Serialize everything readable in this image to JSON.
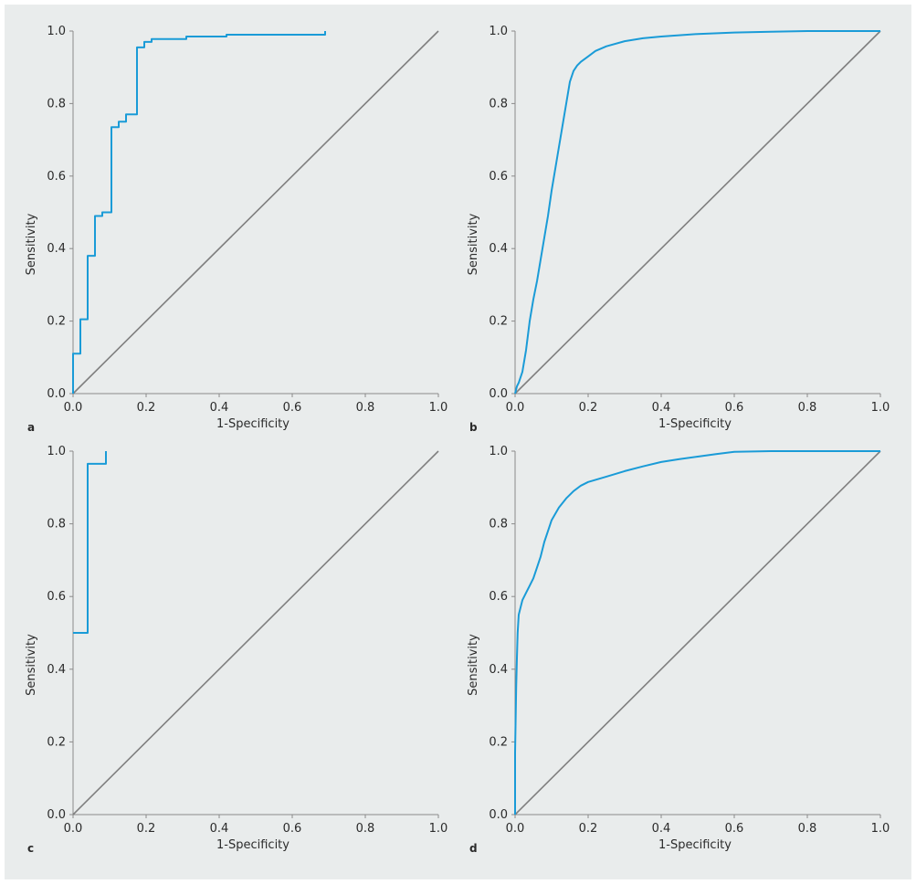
{
  "colors": {
    "roc_line": "#1a9bd7",
    "reference_line": "#7f7f7f",
    "panel_background": "#e9ecec"
  },
  "chart_data": [
    {
      "type": "line",
      "panel": "a",
      "xlabel": "1-Specificity",
      "ylabel": "Sensitivity",
      "xlim": [
        0,
        1
      ],
      "ylim": [
        0,
        1
      ],
      "xticks": [
        "0.0",
        "0.2",
        "0.4",
        "0.6",
        "0.8",
        "1.0"
      ],
      "yticks": [
        "0.0",
        "0.2",
        "0.4",
        "0.6",
        "0.8",
        "1.0"
      ],
      "reference_line": [
        [
          0,
          0
        ],
        [
          1,
          1
        ]
      ],
      "series": [
        {
          "x": [
            0.0,
            0.0,
            0.02,
            0.02,
            0.04,
            0.04,
            0.06,
            0.06,
            0.08,
            0.08,
            0.105,
            0.105,
            0.125,
            0.125,
            0.145,
            0.145,
            0.175,
            0.175,
            0.195,
            0.195,
            0.215,
            0.215,
            0.31,
            0.31,
            0.42,
            0.42,
            0.69,
            0.69
          ],
          "y": [
            0.0,
            0.11,
            0.11,
            0.205,
            0.205,
            0.38,
            0.38,
            0.49,
            0.49,
            0.5,
            0.5,
            0.735,
            0.735,
            0.75,
            0.75,
            0.77,
            0.77,
            0.955,
            0.955,
            0.97,
            0.97,
            0.978,
            0.978,
            0.985,
            0.985,
            0.99,
            0.99,
            1.0
          ]
        }
      ]
    },
    {
      "type": "line",
      "panel": "b",
      "xlabel": "1-Specificity",
      "ylabel": "Sensitivity",
      "xlim": [
        0,
        1
      ],
      "ylim": [
        0,
        1
      ],
      "xticks": [
        "0.0",
        "0.2",
        "0.4",
        "0.6",
        "0.8",
        "1.0"
      ],
      "yticks": [
        "0.0",
        "0.2",
        "0.4",
        "0.6",
        "0.8",
        "1.0"
      ],
      "reference_line": [
        [
          0,
          0
        ],
        [
          1,
          1
        ]
      ],
      "series": [
        {
          "x": [
            0.0,
            0.005,
            0.01,
            0.02,
            0.03,
            0.04,
            0.05,
            0.06,
            0.07,
            0.08,
            0.09,
            0.1,
            0.11,
            0.12,
            0.13,
            0.14,
            0.15,
            0.16,
            0.17,
            0.18,
            0.2,
            0.22,
            0.25,
            0.3,
            0.35,
            0.4,
            0.5,
            0.6,
            0.7,
            0.8,
            0.9,
            1.0
          ],
          "y": [
            0.0,
            0.02,
            0.03,
            0.06,
            0.12,
            0.2,
            0.26,
            0.31,
            0.37,
            0.43,
            0.49,
            0.56,
            0.62,
            0.68,
            0.74,
            0.8,
            0.86,
            0.89,
            0.905,
            0.915,
            0.93,
            0.945,
            0.958,
            0.972,
            0.98,
            0.985,
            0.992,
            0.996,
            0.998,
            1.0,
            1.0,
            1.0
          ]
        }
      ]
    },
    {
      "type": "line",
      "panel": "c",
      "xlabel": "1-Specificity",
      "ylabel": "Sensitivity",
      "xlim": [
        0,
        1
      ],
      "ylim": [
        0,
        1
      ],
      "xticks": [
        "0.0",
        "0.2",
        "0.4",
        "0.6",
        "0.8",
        "1.0"
      ],
      "yticks": [
        "0.0",
        "0.2",
        "0.4",
        "0.6",
        "0.8",
        "1.0"
      ],
      "reference_line": [
        [
          0,
          0
        ],
        [
          1,
          1
        ]
      ],
      "series": [
        {
          "x": [
            0.0,
            0.04,
            0.04,
            0.09,
            0.09
          ],
          "y": [
            0.5,
            0.5,
            0.965,
            0.965,
            1.0
          ]
        }
      ]
    },
    {
      "type": "line",
      "panel": "d",
      "xlabel": "1-Specificity",
      "ylabel": "Sensitivity",
      "xlim": [
        0,
        1
      ],
      "ylim": [
        0,
        1
      ],
      "xticks": [
        "0.0",
        "0.2",
        "0.4",
        "0.6",
        "0.8",
        "1.0"
      ],
      "yticks": [
        "0.0",
        "0.2",
        "0.4",
        "0.6",
        "0.8",
        "1.0"
      ],
      "reference_line": [
        [
          0,
          0
        ],
        [
          1,
          1
        ]
      ],
      "series": [
        {
          "x": [
            0.0,
            0.0,
            0.003,
            0.005,
            0.007,
            0.01,
            0.015,
            0.02,
            0.03,
            0.04,
            0.05,
            0.06,
            0.07,
            0.08,
            0.09,
            0.1,
            0.12,
            0.14,
            0.16,
            0.18,
            0.2,
            0.25,
            0.3,
            0.35,
            0.4,
            0.45,
            0.5,
            0.55,
            0.6,
            0.7,
            0.8,
            0.9,
            1.0
          ],
          "y": [
            0.0,
            0.17,
            0.35,
            0.43,
            0.5,
            0.55,
            0.57,
            0.59,
            0.61,
            0.63,
            0.65,
            0.68,
            0.71,
            0.75,
            0.78,
            0.81,
            0.845,
            0.87,
            0.89,
            0.905,
            0.915,
            0.93,
            0.945,
            0.958,
            0.97,
            0.978,
            0.985,
            0.992,
            0.998,
            1.0,
            1.0,
            1.0,
            1.0
          ]
        }
      ]
    }
  ]
}
